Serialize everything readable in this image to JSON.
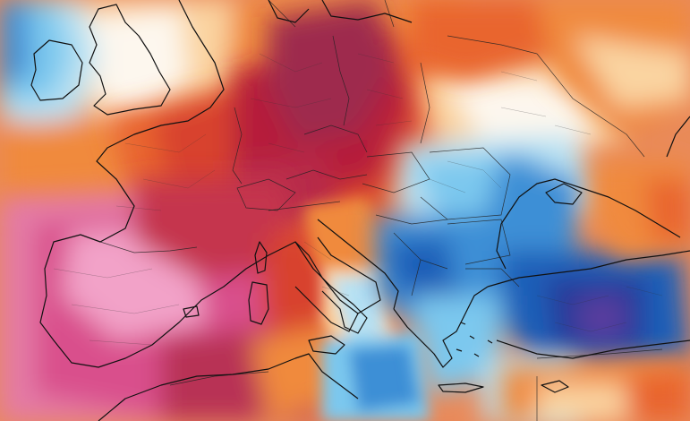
{
  "map": {
    "type": "temperature-anomaly",
    "region": "Europe",
    "printed_text": [],
    "palette": {
      "deep_magenta": "#d94f8c",
      "pink": "#e47aa6",
      "light_pink": "#f2a2c8",
      "crimson": "#c5344e",
      "dark_red": "#b61f3a",
      "red": "#d8432e",
      "red_orange": "#e9652f",
      "orange": "#f08a3e",
      "light_orange": "#f7b067",
      "peach": "#fad4a1",
      "white": "#fdf7ee",
      "pale_blue": "#b9e2f3",
      "sky_blue": "#7cc8ee",
      "blue": "#3d8fd6",
      "deep_blue": "#1f5fb8",
      "navy": "#253b9a",
      "purple": "#5a3e9e",
      "coastline": "#111111",
      "border": "#222222"
    }
  }
}
